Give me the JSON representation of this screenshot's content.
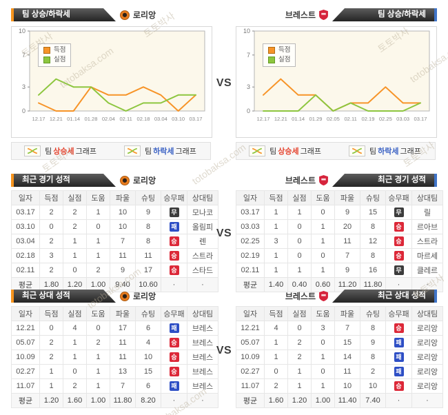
{
  "watermark": {
    "name_ko": "토토박사",
    "domain": "totobaksa.com"
  },
  "vs_label": "VS",
  "teams": {
    "home": {
      "name": "로리앙"
    },
    "away": {
      "name": "브레스트"
    }
  },
  "trend": {
    "header": "팀 상승/하락세",
    "legend": {
      "scored": "득점",
      "conceded": "실점"
    },
    "footer": {
      "team": "팀",
      "rise": "상승세",
      "fall": "하락세",
      "graph": "그래프"
    }
  },
  "labels": {
    "avg": "평균",
    "dot": "·"
  },
  "badge_colors": {
    "win": "#dc2838",
    "draw": "#3c3c3c",
    "lose": "#2e4fc5"
  },
  "chart_colors": {
    "scored": "#f79428",
    "conceded": "#8dc63f",
    "plot_bg": "#fcf8eb"
  },
  "chart_data": [
    {
      "type": "line",
      "title": "팀 상승/하락세",
      "team": "로리앙",
      "categories": [
        "12.17",
        "12.21",
        "01.14",
        "01.28",
        "02.04",
        "02.11",
        "02.18",
        "03.04",
        "03.10",
        "03.17"
      ],
      "series": [
        {
          "name": "득점",
          "color": "#f79428",
          "values": [
            1,
            0,
            0,
            3,
            2,
            2,
            3,
            2,
            0,
            2
          ]
        },
        {
          "name": "실점",
          "color": "#8dc63f",
          "values": [
            2,
            4,
            3,
            3,
            1,
            0,
            1,
            1,
            2,
            2
          ]
        }
      ],
      "ylim": [
        0,
        10
      ],
      "yticks": [
        0,
        3,
        7,
        10
      ],
      "grid": false,
      "legend_position": "top-left"
    },
    {
      "type": "line",
      "title": "팀 상승/하락세",
      "team": "브레스트",
      "categories": [
        "12.17",
        "12.21",
        "01.14",
        "01.29",
        "02.05",
        "02.11",
        "02.19",
        "02.25",
        "03.03",
        "03.17"
      ],
      "series": [
        {
          "name": "득점",
          "color": "#f79428",
          "values": [
            2,
            4,
            2,
            2,
            0,
            1,
            1,
            3,
            1,
            1
          ]
        },
        {
          "name": "실점",
          "color": "#8dc63f",
          "values": [
            0,
            0,
            0,
            2,
            0,
            1,
            0,
            0,
            0,
            1
          ]
        }
      ],
      "ylim": [
        0,
        10
      ],
      "yticks": [
        0,
        3,
        7,
        10
      ],
      "grid": false,
      "legend_position": "top-left"
    }
  ],
  "recent": {
    "header": "최근 경기 성적",
    "columns": [
      "일자",
      "득점",
      "실점",
      "도움",
      "파울",
      "슈팅",
      "승무패",
      "상대팀"
    ],
    "home": {
      "rows": [
        {
          "date": "03.17",
          "goals": "2",
          "conceded": "2",
          "assists": "1",
          "fouls": "10",
          "shots": "9",
          "result": "무",
          "result_type": "draw",
          "opponent": "모나코"
        },
        {
          "date": "03.10",
          "goals": "0",
          "conceded": "2",
          "assists": "0",
          "fouls": "10",
          "shots": "8",
          "result": "패",
          "result_type": "lose",
          "opponent": "올림피"
        },
        {
          "date": "03.04",
          "goals": "2",
          "conceded": "1",
          "assists": "1",
          "fouls": "7",
          "shots": "8",
          "result": "승",
          "result_type": "win",
          "opponent": "렌"
        },
        {
          "date": "02.18",
          "goals": "3",
          "conceded": "1",
          "assists": "1",
          "fouls": "11",
          "shots": "11",
          "result": "승",
          "result_type": "win",
          "opponent": "스트라"
        },
        {
          "date": "02.11",
          "goals": "2",
          "conceded": "0",
          "assists": "2",
          "fouls": "9",
          "shots": "17",
          "result": "승",
          "result_type": "win",
          "opponent": "스타드"
        }
      ],
      "avg": {
        "goals": "1.80",
        "conceded": "1.20",
        "assists": "1.00",
        "fouls": "9.40",
        "shots": "10.60"
      }
    },
    "away": {
      "rows": [
        {
          "date": "03.17",
          "goals": "1",
          "conceded": "1",
          "assists": "0",
          "fouls": "9",
          "shots": "15",
          "result": "무",
          "result_type": "draw",
          "opponent": "릴"
        },
        {
          "date": "03.03",
          "goals": "1",
          "conceded": "0",
          "assists": "1",
          "fouls": "20",
          "shots": "8",
          "result": "승",
          "result_type": "win",
          "opponent": "르아브"
        },
        {
          "date": "02.25",
          "goals": "3",
          "conceded": "0",
          "assists": "1",
          "fouls": "11",
          "shots": "12",
          "result": "승",
          "result_type": "win",
          "opponent": "스트라"
        },
        {
          "date": "02.19",
          "goals": "1",
          "conceded": "0",
          "assists": "0",
          "fouls": "7",
          "shots": "8",
          "result": "승",
          "result_type": "win",
          "opponent": "마르세"
        },
        {
          "date": "02.11",
          "goals": "1",
          "conceded": "1",
          "assists": "1",
          "fouls": "9",
          "shots": "16",
          "result": "무",
          "result_type": "draw",
          "opponent": "클레르"
        }
      ],
      "avg": {
        "goals": "1.40",
        "conceded": "0.40",
        "assists": "0.60",
        "fouls": "11.20",
        "shots": "11.80"
      }
    }
  },
  "h2h": {
    "header": "최근 상대 성적",
    "columns": [
      "일자",
      "득점",
      "실점",
      "도움",
      "파울",
      "슈팅",
      "승무패",
      "상대팀"
    ],
    "home": {
      "rows": [
        {
          "date": "12.21",
          "goals": "0",
          "conceded": "4",
          "assists": "0",
          "fouls": "17",
          "shots": "6",
          "result": "패",
          "result_type": "lose",
          "opponent": "브레스"
        },
        {
          "date": "05.07",
          "goals": "2",
          "conceded": "1",
          "assists": "2",
          "fouls": "11",
          "shots": "4",
          "result": "승",
          "result_type": "win",
          "opponent": "브레스"
        },
        {
          "date": "10.09",
          "goals": "2",
          "conceded": "1",
          "assists": "1",
          "fouls": "11",
          "shots": "10",
          "result": "승",
          "result_type": "win",
          "opponent": "브레스"
        },
        {
          "date": "02.27",
          "goals": "1",
          "conceded": "0",
          "assists": "1",
          "fouls": "13",
          "shots": "15",
          "result": "승",
          "result_type": "win",
          "opponent": "브레스"
        },
        {
          "date": "11.07",
          "goals": "1",
          "conceded": "2",
          "assists": "1",
          "fouls": "7",
          "shots": "6",
          "result": "패",
          "result_type": "lose",
          "opponent": "브레스"
        }
      ],
      "avg": {
        "goals": "1.20",
        "conceded": "1.60",
        "assists": "1.00",
        "fouls": "11.80",
        "shots": "8.20"
      }
    },
    "away": {
      "rows": [
        {
          "date": "12.21",
          "goals": "4",
          "conceded": "0",
          "assists": "3",
          "fouls": "7",
          "shots": "8",
          "result": "승",
          "result_type": "win",
          "opponent": "로리앙"
        },
        {
          "date": "05.07",
          "goals": "1",
          "conceded": "2",
          "assists": "0",
          "fouls": "15",
          "shots": "9",
          "result": "패",
          "result_type": "lose",
          "opponent": "로리앙"
        },
        {
          "date": "10.09",
          "goals": "1",
          "conceded": "2",
          "assists": "1",
          "fouls": "14",
          "shots": "8",
          "result": "패",
          "result_type": "lose",
          "opponent": "로리앙"
        },
        {
          "date": "02.27",
          "goals": "0",
          "conceded": "1",
          "assists": "0",
          "fouls": "11",
          "shots": "2",
          "result": "패",
          "result_type": "lose",
          "opponent": "로리앙"
        },
        {
          "date": "11.07",
          "goals": "2",
          "conceded": "1",
          "assists": "1",
          "fouls": "10",
          "shots": "10",
          "result": "승",
          "result_type": "win",
          "opponent": "로리앙"
        }
      ],
      "avg": {
        "goals": "1.60",
        "conceded": "1.20",
        "assists": "1.00",
        "fouls": "11.40",
        "shots": "7.40"
      }
    }
  }
}
